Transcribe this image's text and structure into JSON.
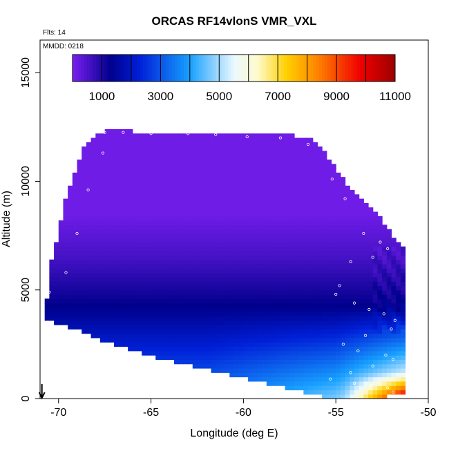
{
  "chart_data": {
    "type": "heatmap",
    "title": "ORCAS RF14vlonS VMR_VXL",
    "xlabel": "Longitude (deg E)",
    "ylabel": "Altitude (m)",
    "xlim": [
      -71,
      -50
    ],
    "ylim": [
      0,
      16500
    ],
    "x_ticks": [
      -70,
      -65,
      -60,
      -55,
      -50
    ],
    "y_ticks": [
      0,
      5000,
      10000,
      15000
    ],
    "annotations": {
      "flights": "Flts: 14",
      "date": "MMDD: 0218"
    },
    "colorbar": {
      "min": 0,
      "max": 11000,
      "tick_values": [
        1000,
        3000,
        5000,
        7000,
        9000,
        11000
      ],
      "divider_values": [
        1000,
        2000,
        3000,
        4000,
        5000,
        6000,
        7000,
        8000,
        9000,
        10000
      ],
      "palette": [
        "#7a1ff0",
        "#00008c",
        "#0020d8",
        "#18a0ff",
        "#eaf8ff",
        "#fffacc",
        "#ffd000",
        "#ff8000",
        "#f00000",
        "#9c0000"
      ],
      "palette_stops": [
        0,
        1300,
        2300,
        4000,
        5500,
        6300,
        7300,
        8400,
        9800,
        11000
      ]
    },
    "field": {
      "description": "water vapour VMR curtain along longitude",
      "envelope_lon": [
        -70.7,
        -70.5,
        -70.0,
        -69.5,
        -68.5,
        -67.5,
        -66.0,
        -64.0,
        -62.0,
        -60.0,
        -58.0,
        -56.5,
        -55.5,
        -54.5,
        -53.5,
        -52.5,
        -51.8,
        -51.4
      ],
      "envelope_top_m": [
        3800,
        6000,
        7600,
        9600,
        11800,
        12300,
        12300,
        12250,
        12200,
        12200,
        12200,
        12000,
        11200,
        10000,
        9000,
        8200,
        7400,
        7000
      ],
      "envelope_bottom_m": [
        3800,
        3650,
        3550,
        3400,
        3100,
        2700,
        2300,
        1850,
        1450,
        1050,
        650,
        320,
        150,
        50,
        20,
        150,
        250,
        300
      ],
      "mid_altitude_low_values_lon_range": [
        -70.5,
        -52
      ]
    },
    "sample_points": [
      [
        -67.5,
        12250
      ],
      [
        -66.5,
        12250
      ],
      [
        -65.0,
        12200
      ],
      [
        -63.0,
        12200
      ],
      [
        -61.5,
        12150
      ],
      [
        -59.8,
        12050
      ],
      [
        -58.0,
        12000
      ],
      [
        -56.5,
        11700
      ],
      [
        -55.2,
        10100
      ],
      [
        -54.5,
        9200
      ],
      [
        -53.5,
        7600
      ],
      [
        -52.6,
        7200
      ],
      [
        -52.2,
        6900
      ],
      [
        -53.0,
        6500
      ],
      [
        -54.2,
        6300
      ],
      [
        -54.8,
        5200
      ],
      [
        -55.0,
        4800
      ],
      [
        -54.0,
        4400
      ],
      [
        -53.2,
        4100
      ],
      [
        -52.4,
        3900
      ],
      [
        -51.8,
        3600
      ],
      [
        -52.0,
        3200
      ],
      [
        -53.4,
        2900
      ],
      [
        -54.6,
        2500
      ],
      [
        -53.8,
        2200
      ],
      [
        -52.3,
        2000
      ],
      [
        -51.9,
        1800
      ],
      [
        -53.0,
        1500
      ],
      [
        -54.2,
        1200
      ],
      [
        -55.3,
        900
      ],
      [
        -54.0,
        700
      ],
      [
        -53.1,
        600
      ],
      [
        -52.2,
        500
      ],
      [
        -51.9,
        300
      ],
      [
        -69.6,
        5800
      ],
      [
        -70.5,
        4900
      ],
      [
        -69.0,
        7600
      ],
      [
        -68.4,
        9600
      ],
      [
        -67.6,
        11300
      ]
    ]
  }
}
